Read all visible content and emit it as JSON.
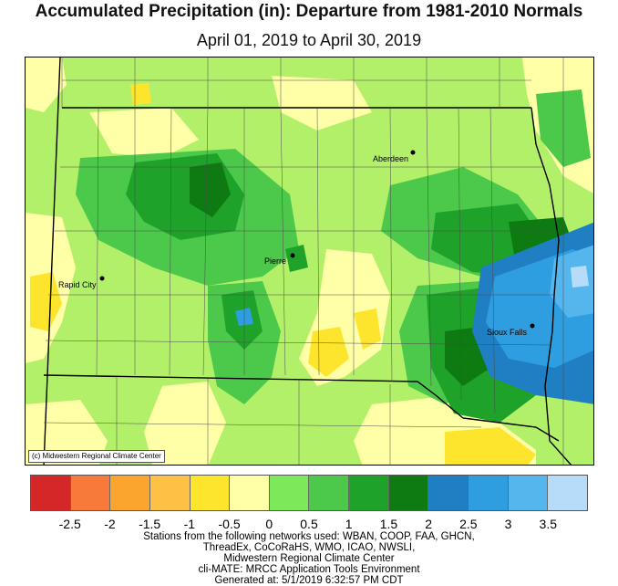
{
  "title": "Accumulated Precipitation (in): Departure from 1981-2010 Normals",
  "subtitle": "April 01, 2019 to April 30, 2019",
  "map": {
    "copyright": "(c) Midwestern Regional Climate Center",
    "cities": [
      {
        "name": "Aberdeen",
        "id": "aberdeen"
      },
      {
        "name": "Pierre",
        "id": "pierre"
      },
      {
        "name": "Rapid City",
        "id": "rapid-city"
      },
      {
        "name": "Sioux Falls",
        "id": "sioux-falls"
      }
    ]
  },
  "legend": {
    "colors": [
      "#d62728",
      "#f77a3b",
      "#fba52f",
      "#fdc245",
      "#fde52e",
      "#ffffa8",
      "#7de85a",
      "#4cc94a",
      "#1fa22a",
      "#0d7a12",
      "#1f7fc2",
      "#2e9ee0",
      "#55b6ee",
      "#b6dcfa"
    ],
    "ticks": [
      "-2.5",
      "-2",
      "-1.5",
      "-1",
      "-0.5",
      "0",
      "0.5",
      "1",
      "1.5",
      "2",
      "2.5",
      "3",
      "3.5"
    ]
  },
  "footer": {
    "lines": [
      "Stations from the following networks used: WBAN, COOP, FAA, GHCN,",
      "ThreadEx, CoCoRaHS, WMO, ICAO, NWSLI,",
      "Midwestern Regional Climate Center",
      "cli-MATE: MRCC Application Tools Environment",
      "Generated at: 5/1/2019 6:32:57 PM CDT"
    ]
  }
}
